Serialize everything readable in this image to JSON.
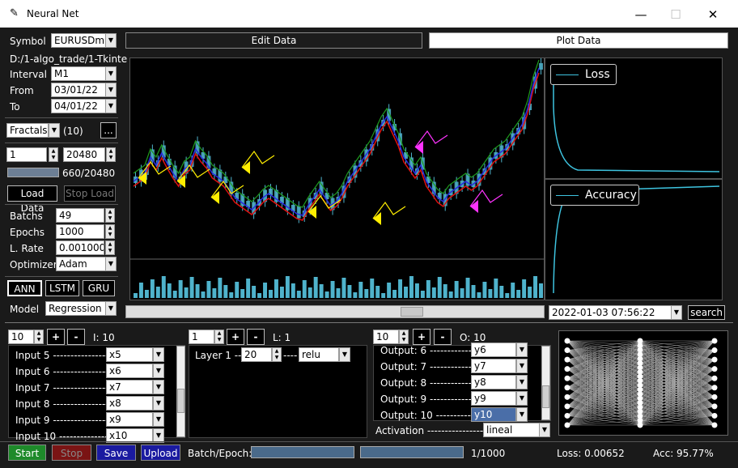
{
  "window": {
    "title": "Neural Net",
    "minimize": "—",
    "maximize": "☐",
    "close": "✕"
  },
  "sidebar": {
    "symbol_label": "Symbol",
    "symbol_value": "EURUSDm",
    "path": "D:/1-algo_trade/1-Tkinte",
    "interval_label": "Interval",
    "interval_value": "M1",
    "from_label": "From",
    "from_value": "03/01/22",
    "to_label": "To",
    "to_value": "04/01/22",
    "indicator_value": "Fractals",
    "indicator_count": "(10)",
    "indicator_more": "...",
    "start_index": "1",
    "end_index": "20480",
    "progress_text": "660/20480",
    "progress_fraction": 0.03,
    "load_data": "Load Data",
    "stop_load": "Stop Load",
    "batchs_label": "Batchs",
    "batchs_value": "49",
    "epochs_label": "Epochs",
    "epochs_value": "1000",
    "lrate_label": "L. Rate",
    "lrate_value": "0.001000",
    "optimizer_label": "Optimizer",
    "optimizer_value": "Adam",
    "net_types": [
      "ANN",
      "LSTM",
      "GRU"
    ],
    "model_label": "Model",
    "model_value": "Regression"
  },
  "tabs": {
    "edit": "Edit Data",
    "plot": "Plot Data"
  },
  "chart_data": {
    "type": "line",
    "series": [
      {
        "name": "Loss"
      },
      {
        "name": "Accuracy"
      }
    ]
  },
  "timeline": {
    "datetime": "2022-01-03 07:56:22",
    "search": "search"
  },
  "inputs_panel": {
    "count": "10",
    "plus": "+",
    "minus": "-",
    "info": "I: 10",
    "rows": [
      {
        "label": "Input 5 ----------------",
        "value": "x5"
      },
      {
        "label": "Input 6 ----------------",
        "value": "x6"
      },
      {
        "label": "Input 7 ----------------",
        "value": "x7"
      },
      {
        "label": "Input 8 ----------------",
        "value": "x8"
      },
      {
        "label": "Input 9 ----------------",
        "value": "x9"
      },
      {
        "label": "Input 10 --------------",
        "value": "x10"
      }
    ]
  },
  "layers_panel": {
    "count": "1",
    "plus": "+",
    "minus": "-",
    "info": "L: 1",
    "rows": [
      {
        "label": "Layer 1 ---",
        "neurons": "20",
        "dash": "----",
        "activation": "relu"
      }
    ]
  },
  "outputs_panel": {
    "count": "10",
    "plus": "+",
    "minus": "-",
    "info": "O: 10",
    "rows": [
      {
        "label": "Output: 6 ------------",
        "value": "y6"
      },
      {
        "label": "Output: 7 ------------",
        "value": "y7"
      },
      {
        "label": "Output: 8 ------------",
        "value": "y8"
      },
      {
        "label": "Output: 9 ------------",
        "value": "y9"
      },
      {
        "label": "Output: 10 ----------",
        "value": "y10"
      }
    ],
    "activation_label": "Activation -----------------",
    "activation_value": "lineal"
  },
  "status": {
    "start": "Start",
    "stop": "Stop",
    "save": "Save",
    "upload": "Upload",
    "batch_epoch_label": "Batch/Epoch:",
    "epoch_text": "1/1000",
    "loss": "Loss: 0.00652",
    "acc": "Acc: 95.77%"
  },
  "colors": {
    "start": "#1e8a2a",
    "stop": "#8a1a1a",
    "save": "#1a1aa0",
    "upload": "#1a1aa0",
    "cyan": "#3ec4e0",
    "accent": "#4a6ea8"
  }
}
